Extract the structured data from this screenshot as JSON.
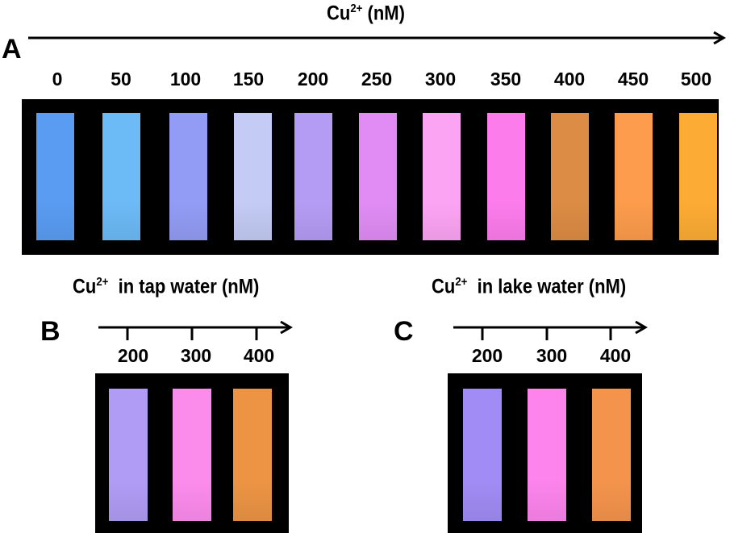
{
  "panel_a": {
    "letter": "A",
    "title_base": "Cu",
    "title_sup": "2+",
    "title_rest": " (nM)",
    "concentrations": [
      "0",
      "50",
      "100",
      "150",
      "200",
      "250",
      "300",
      "350",
      "400",
      "450",
      "500"
    ],
    "strip_colors": [
      "#5a9cf2",
      "#6cbaf6",
      "#929cf4",
      "#c4cbf4",
      "#b49cf4",
      "#e08cf4",
      "#fca4f4",
      "#fc7cec",
      "#dc8c44",
      "#fc9c4c",
      "#fcac34"
    ]
  },
  "panel_b": {
    "letter": "B",
    "title_base": "Cu",
    "title_sup": "2+",
    "title_rest": "  in tap water (nM)",
    "concentrations": [
      "200",
      "300",
      "400"
    ],
    "strip_colors": [
      "#b09cf4",
      "#fc8cec",
      "#ec9444"
    ]
  },
  "panel_c": {
    "letter": "C",
    "title_base": "Cu",
    "title_sup": "2+",
    "title_rest": "  in lake water (nM)",
    "concentrations": [
      "200",
      "300",
      "400"
    ],
    "strip_colors": [
      "#a08cf4",
      "#fc84ec",
      "#f4944c"
    ]
  }
}
